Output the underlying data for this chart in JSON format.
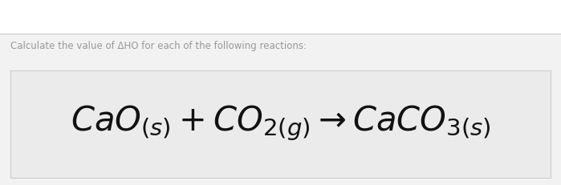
{
  "title_text": "Calculate the value of ΔHO for each of the following reactions:",
  "title_fontsize": 8.5,
  "title_color": "#999999",
  "bg_top_color": "#ffffff",
  "bg_bottom_color": "#f2f2f2",
  "box_bg_color": "#ebebeb",
  "box_edge_color": "#cccccc",
  "equation_color": "#111111",
  "equation_fontsize": 30,
  "fig_width": 6.99,
  "fig_height": 2.31,
  "dpi": 100
}
